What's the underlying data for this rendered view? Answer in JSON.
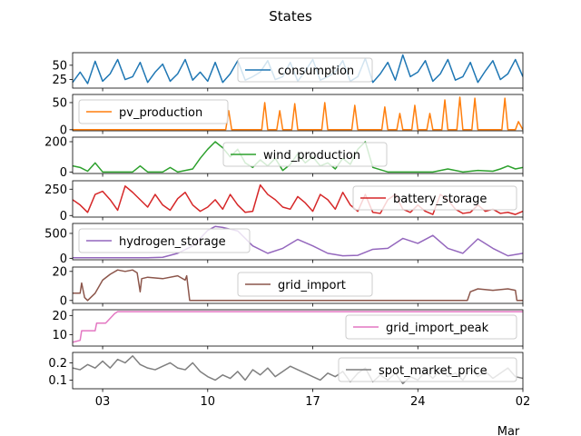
{
  "title": "States",
  "colors": {
    "consumption": "#1f77b4",
    "pv_production": "#ff7f0e",
    "wind_production": "#2ca02c",
    "battery_storage": "#d62728",
    "hydrogen_storage": "#9467bd",
    "grid_import": "#8c564b",
    "grid_import_peak": "#e377c2",
    "spot_market_price": "#7f7f7f"
  },
  "chart_data": {
    "type": "line",
    "title": "States",
    "x_range": [
      "2024-02-01",
      "2024-03-02"
    ],
    "x_ticks": [
      "03",
      "10",
      "17",
      "24",
      "02"
    ],
    "x_tick_dates": [
      "2024-02-03",
      "2024-02-10",
      "2024-02-17",
      "2024-02-24",
      "2024-03-02"
    ],
    "x_secondary_label": "Mar",
    "grid": false,
    "panels": [
      {
        "name": "consumption",
        "legend_pos": "top-center",
        "ylim": [
          10,
          72
        ],
        "yticks": [
          "25",
          "50"
        ],
        "ytick_values": [
          25,
          50
        ],
        "series": [
          {
            "name": "consumption",
            "x_days": [
              0,
              0.5,
              1,
              1.5,
              2,
              2.5,
              3,
              3.5,
              4,
              4.5,
              5,
              5.5,
              6,
              6.5,
              7,
              7.5,
              8,
              8.5,
              9,
              9.5,
              10,
              10.5,
              11,
              11.5,
              12,
              12.5,
              13,
              13.5,
              14,
              14.5,
              15,
              15.5,
              16,
              16.5,
              17,
              17.5,
              18,
              18.5,
              19,
              19.5,
              20,
              20.5,
              21,
              21.5,
              22,
              22.5,
              23,
              23.5,
              24,
              24.5,
              25,
              25.5,
              26,
              26.5,
              27,
              27.5,
              28,
              28.5,
              29,
              29.5,
              30
            ],
            "values": [
              20,
              38,
              18,
              57,
              22,
              35,
              60,
              25,
              30,
              55,
              20,
              38,
              52,
              22,
              35,
              60,
              24,
              38,
              22,
              55,
              20,
              35,
              58,
              24,
              30,
              38,
              58,
              25,
              30,
              55,
              22,
              40,
              60,
              24,
              30,
              38,
              58,
              22,
              30,
              62,
              20,
              35,
              55,
              24,
              68,
              30,
              38,
              58,
              22,
              35,
              60,
              24,
              30,
              55,
              20,
              40,
              58,
              25,
              35,
              60,
              30
            ]
          }
        ]
      },
      {
        "name": "pv_production",
        "legend_pos": "top-left",
        "ylim": [
          -2,
          65
        ],
        "yticks": [
          "0",
          "50"
        ],
        "ytick_values": [
          0,
          50
        ],
        "series": [
          {
            "name": "pv_production",
            "x_days": [
              0,
              10.2,
              10.4,
              10.6,
              12.6,
              12.8,
              13,
              13.6,
              13.8,
              14,
              14.6,
              14.8,
              15,
              16.6,
              16.8,
              17,
              18.6,
              18.8,
              19,
              20.6,
              20.8,
              21,
              21.6,
              21.8,
              22,
              22.6,
              22.8,
              23,
              23.6,
              23.8,
              24,
              24.6,
              24.8,
              25,
              25.6,
              25.8,
              26,
              26.6,
              26.8,
              27,
              28.6,
              28.8,
              29,
              29.5,
              29.7,
              30
            ],
            "values": [
              0,
              0,
              35,
              0,
              0,
              50,
              0,
              0,
              35,
              0,
              0,
              48,
              0,
              0,
              50,
              0,
              0,
              45,
              0,
              0,
              42,
              0,
              0,
              30,
              0,
              0,
              45,
              0,
              0,
              30,
              0,
              0,
              55,
              0,
              0,
              60,
              0,
              0,
              58,
              0,
              0,
              58,
              0,
              0,
              15,
              0
            ]
          }
        ]
      },
      {
        "name": "wind_production",
        "legend_pos": "top-center",
        "ylim": [
          -10,
          230
        ],
        "yticks": [
          "0",
          "200"
        ],
        "ytick_values": [
          0,
          200
        ],
        "series": [
          {
            "name": "wind_production",
            "x_days": [
              0,
              0.5,
              1,
              1.5,
              2,
              3,
              4,
              4.5,
              5,
              6,
              6.5,
              7,
              8,
              8.5,
              9,
              9.5,
              10,
              10.5,
              11,
              11.5,
              12,
              12.5,
              13,
              13.5,
              14,
              14.5,
              15,
              15.5,
              16,
              16.5,
              17,
              17.5,
              18,
              18.5,
              19,
              19.5,
              20,
              21,
              22,
              23,
              24,
              25,
              26,
              27,
              28,
              28.5,
              29,
              29.5,
              30
            ],
            "values": [
              40,
              30,
              5,
              60,
              0,
              0,
              0,
              40,
              0,
              0,
              30,
              0,
              20,
              90,
              150,
              200,
              160,
              100,
              150,
              60,
              30,
              80,
              40,
              90,
              10,
              50,
              120,
              60,
              100,
              40,
              60,
              20,
              90,
              50,
              150,
              200,
              30,
              0,
              0,
              0,
              0,
              20,
              0,
              10,
              5,
              20,
              40,
              20,
              30
            ]
          }
        ]
      },
      {
        "name": "battery_storage",
        "legend_pos": "top-right",
        "ylim": [
          -15,
          330
        ],
        "yticks": [
          "0",
          "250"
        ],
        "ytick_values": [
          0,
          250
        ],
        "series": [
          {
            "name": "battery_storage",
            "x_days": [
              0,
              0.5,
              1,
              1.5,
              2,
              2.5,
              3,
              3.5,
              4,
              4.5,
              5,
              5.5,
              6,
              6.5,
              7,
              7.5,
              8,
              8.5,
              9,
              9.5,
              10,
              10.5,
              11,
              11.5,
              12,
              12.5,
              13,
              13.5,
              14,
              14.5,
              15,
              15.5,
              16,
              16.5,
              17,
              17.5,
              18,
              18.5,
              19,
              19.5,
              20,
              20.5,
              21,
              21.5,
              22,
              22.5,
              23,
              23.5,
              24,
              24.5,
              25,
              25.5,
              26,
              26.5,
              27,
              27.5,
              28,
              28.5,
              29,
              29.5,
              30
            ],
            "values": [
              150,
              100,
              30,
              200,
              230,
              150,
              50,
              280,
              220,
              150,
              80,
              200,
              100,
              50,
              160,
              220,
              100,
              40,
              80,
              150,
              60,
              200,
              100,
              30,
              40,
              290,
              200,
              150,
              80,
              60,
              180,
              120,
              40,
              200,
              150,
              60,
              220,
              100,
              40,
              200,
              30,
              20,
              150,
              200,
              60,
              30,
              100,
              40,
              10,
              200,
              150,
              60,
              20,
              30,
              100,
              40,
              60,
              20,
              30,
              10,
              40
            ]
          }
        ]
      },
      {
        "name": "hydrogen_storage",
        "legend_pos": "top-left",
        "ylim": [
          -30,
          700
        ],
        "yticks": [
          "0",
          "500"
        ],
        "ytick_values": [
          0,
          500
        ],
        "series": [
          {
            "name": "hydrogen_storage",
            "x_days": [
              0,
              1,
              2,
              3,
              4,
              5,
              6,
              7,
              8,
              8.5,
              9,
              9.5,
              10,
              11,
              12,
              13,
              14,
              15,
              16,
              17,
              18,
              19,
              20,
              21,
              22,
              23,
              24,
              25,
              26,
              27,
              28,
              29,
              30
            ],
            "values": [
              10,
              10,
              10,
              10,
              10,
              10,
              20,
              100,
              250,
              400,
              560,
              640,
              620,
              550,
              250,
              100,
              200,
              380,
              250,
              100,
              50,
              60,
              180,
              200,
              400,
              300,
              460,
              200,
              100,
              390,
              200,
              50,
              100
            ]
          }
        ]
      },
      {
        "name": "grid_import",
        "legend_pos": "top-center",
        "ylim": [
          -2,
          23
        ],
        "yticks": [
          "0",
          "20"
        ],
        "ytick_values": [
          0,
          20
        ],
        "series": [
          {
            "name": "grid_import",
            "x_days": [
              0,
              0.5,
              0.6,
              0.8,
              1,
              1.5,
              2,
              2.5,
              3,
              3.5,
              4,
              4.3,
              4.5,
              4.6,
              5,
              6,
              7,
              7.5,
              7.6,
              7.8,
              8,
              18.5,
              18.6,
              26.3,
              26.5,
              27,
              28,
              29,
              29.5,
              29.6,
              30
            ],
            "values": [
              5,
              5,
              12,
              2,
              0,
              5,
              14,
              18,
              21,
              20,
              21,
              19,
              6,
              15,
              16,
              15,
              17,
              14,
              17,
              0,
              0,
              0,
              0,
              0,
              6,
              8,
              7,
              8,
              7,
              0,
              0
            ]
          }
        ]
      },
      {
        "name": "grid_import_peak",
        "legend_pos": "top-right",
        "ylim": [
          4,
          23
        ],
        "yticks": [
          "10",
          "20"
        ],
        "ytick_values": [
          10,
          20
        ],
        "series": [
          {
            "name": "grid_import_peak",
            "x_days": [
              0,
              0.5,
              0.6,
              1.5,
              1.6,
              2.2,
              2.8,
              3,
              30
            ],
            "values": [
              6,
              7,
              12,
              12,
              16,
              16,
              21,
              22,
              22
            ]
          }
        ]
      },
      {
        "name": "spot_market_price",
        "legend_pos": "top-right",
        "ylim": [
          0.05,
          0.26
        ],
        "yticks": [
          "0.1",
          "0.2"
        ],
        "ytick_values": [
          0.1,
          0.2
        ],
        "series": [
          {
            "name": "spot_market_price",
            "x_days": [
              0,
              0.5,
              1,
              1.5,
              2,
              2.5,
              3,
              3.5,
              4,
              4.5,
              5,
              5.5,
              6,
              6.5,
              7,
              7.5,
              8,
              8.5,
              9,
              9.5,
              10,
              10.5,
              11,
              11.5,
              12,
              12.5,
              13,
              13.5,
              14,
              14.5,
              15,
              15.5,
              16,
              16.5,
              17,
              17.5,
              18,
              18.5,
              19,
              19.5,
              20,
              20.5,
              21,
              21.5,
              22,
              22.5,
              23,
              23.5,
              24,
              24.5,
              25,
              25.5,
              26,
              26.5,
              27,
              27.5,
              28,
              28.5,
              29,
              29.5,
              30
            ],
            "values": [
              0.17,
              0.16,
              0.19,
              0.17,
              0.21,
              0.17,
              0.22,
              0.2,
              0.24,
              0.19,
              0.17,
              0.16,
              0.18,
              0.2,
              0.17,
              0.16,
              0.2,
              0.15,
              0.12,
              0.1,
              0.13,
              0.11,
              0.15,
              0.1,
              0.16,
              0.13,
              0.17,
              0.12,
              0.15,
              0.18,
              0.16,
              0.14,
              0.12,
              0.1,
              0.14,
              0.12,
              0.15,
              0.09,
              0.14,
              0.17,
              0.09,
              0.13,
              0.1,
              0.14,
              0.08,
              0.12,
              0.1,
              0.15,
              0.11,
              0.16,
              0.12,
              0.14,
              0.1,
              0.17,
              0.12,
              0.15,
              0.11,
              0.14,
              0.17,
              0.12,
              0.11
            ]
          }
        ]
      }
    ]
  }
}
